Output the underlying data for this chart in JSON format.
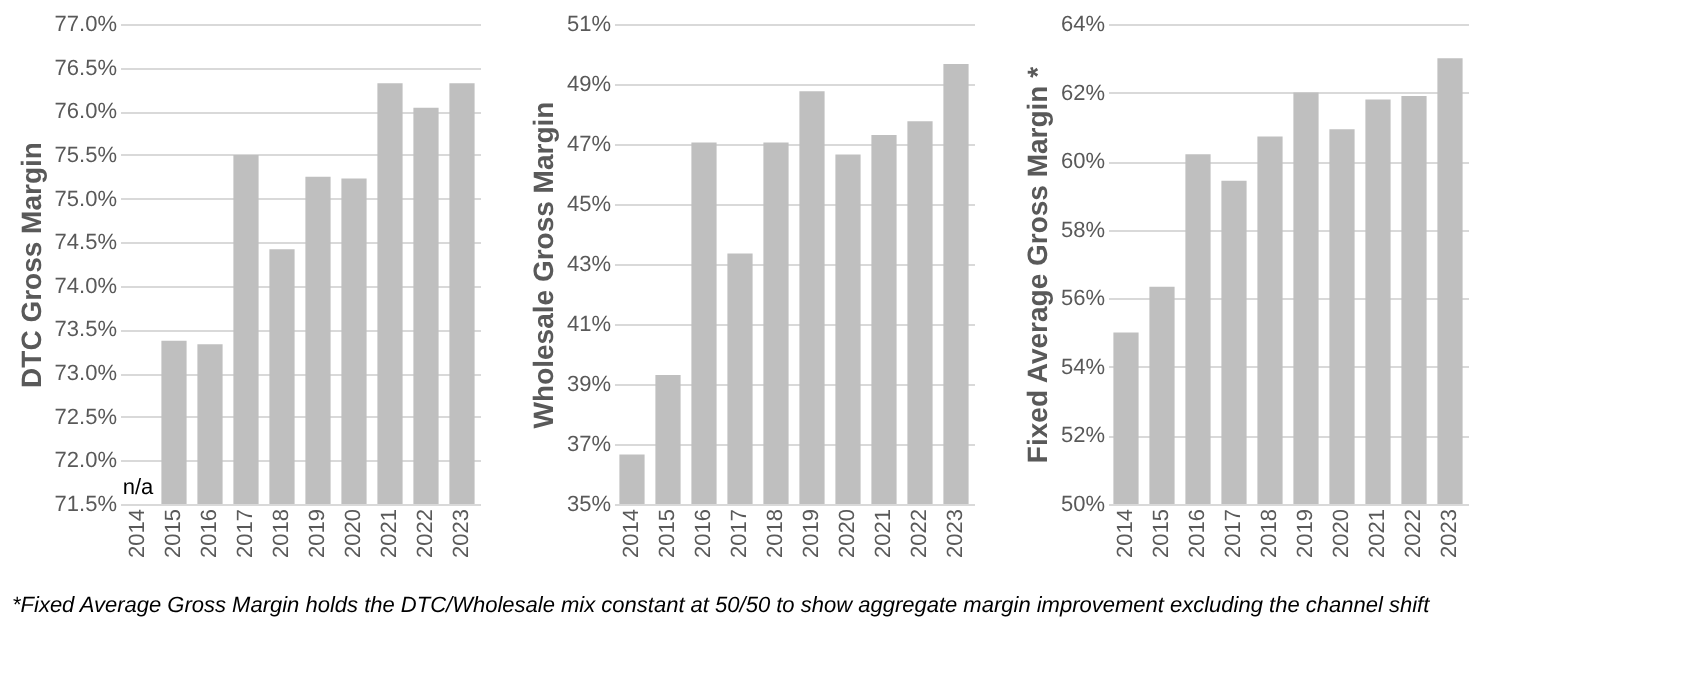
{
  "chart_data": [
    {
      "type": "bar",
      "ylabel": "DTC Gross Margin",
      "categories": [
        "2014",
        "2015",
        "2016",
        "2017",
        "2018",
        "2019",
        "2020",
        "2021",
        "2022",
        "2023"
      ],
      "values": [
        null,
        73.37,
        73.33,
        75.5,
        74.42,
        75.25,
        75.23,
        76.32,
        76.04,
        76.32
      ],
      "color": "#bfbfbf",
      "ylim": [
        71.5,
        77.0
      ],
      "yticks": [
        {
          "value": 71.5,
          "label": "71.5%"
        },
        {
          "value": 72.0,
          "label": "72.0%"
        },
        {
          "value": 72.5,
          "label": "72.5%"
        },
        {
          "value": 73.0,
          "label": "73.0%"
        },
        {
          "value": 73.5,
          "label": "73.5%"
        },
        {
          "value": 74.0,
          "label": "74.0%"
        },
        {
          "value": 74.5,
          "label": "74.5%"
        },
        {
          "value": 75.0,
          "label": "75.0%"
        },
        {
          "value": 75.5,
          "label": "75.5%"
        },
        {
          "value": 76.0,
          "label": "76.0%"
        },
        {
          "value": 76.5,
          "label": "76.5%"
        },
        {
          "value": 77.0,
          "label": "77.0%"
        }
      ],
      "grid": "y",
      "value_labels": [
        "n/a",
        null,
        null,
        null,
        null,
        null,
        null,
        null,
        null,
        null
      ]
    },
    {
      "type": "bar",
      "ylabel": "Wholesale Gross Margin",
      "categories": [
        "2014",
        "2015",
        "2016",
        "2017",
        "2018",
        "2019",
        "2020",
        "2021",
        "2022",
        "2023"
      ],
      "values": [
        36.65,
        39.3,
        47.05,
        43.35,
        47.05,
        48.76,
        46.65,
        47.3,
        47.76,
        49.67
      ],
      "color": "#bfbfbf",
      "ylim": [
        35,
        51
      ],
      "yticks": [
        {
          "value": 35,
          "label": "35%"
        },
        {
          "value": 37,
          "label": "37%"
        },
        {
          "value": 39,
          "label": "39%"
        },
        {
          "value": 41,
          "label": "41%"
        },
        {
          "value": 43,
          "label": "43%"
        },
        {
          "value": 45,
          "label": "45%"
        },
        {
          "value": 47,
          "label": "47%"
        },
        {
          "value": 49,
          "label": "49%"
        },
        {
          "value": 51,
          "label": "51%"
        }
      ],
      "grid": "y"
    },
    {
      "type": "bar",
      "ylabel": "Fixed Average Gross Margin *",
      "categories": [
        "2014",
        "2015",
        "2016",
        "2017",
        "2018",
        "2019",
        "2020",
        "2021",
        "2022",
        "2023"
      ],
      "values": [
        55.0,
        56.34,
        60.2,
        59.43,
        60.72,
        62.0,
        60.93,
        61.8,
        61.9,
        63.0
      ],
      "color": "#bfbfbf",
      "ylim": [
        50,
        64
      ],
      "yticks": [
        {
          "value": 50,
          "label": "50%"
        },
        {
          "value": 52,
          "label": "52%"
        },
        {
          "value": 54,
          "label": "54%"
        },
        {
          "value": 56,
          "label": "56%"
        },
        {
          "value": 58,
          "label": "58%"
        },
        {
          "value": 60,
          "label": "60%"
        },
        {
          "value": 62,
          "label": "62%"
        },
        {
          "value": 64,
          "label": "64%"
        }
      ],
      "grid": "y",
      "annotations": [
        "*Fixed Average Gross Margin holds the DTC/Wholesale mix constant at 50/50 to show aggregate margin improvement excluding the channel shift"
      ]
    }
  ]
}
